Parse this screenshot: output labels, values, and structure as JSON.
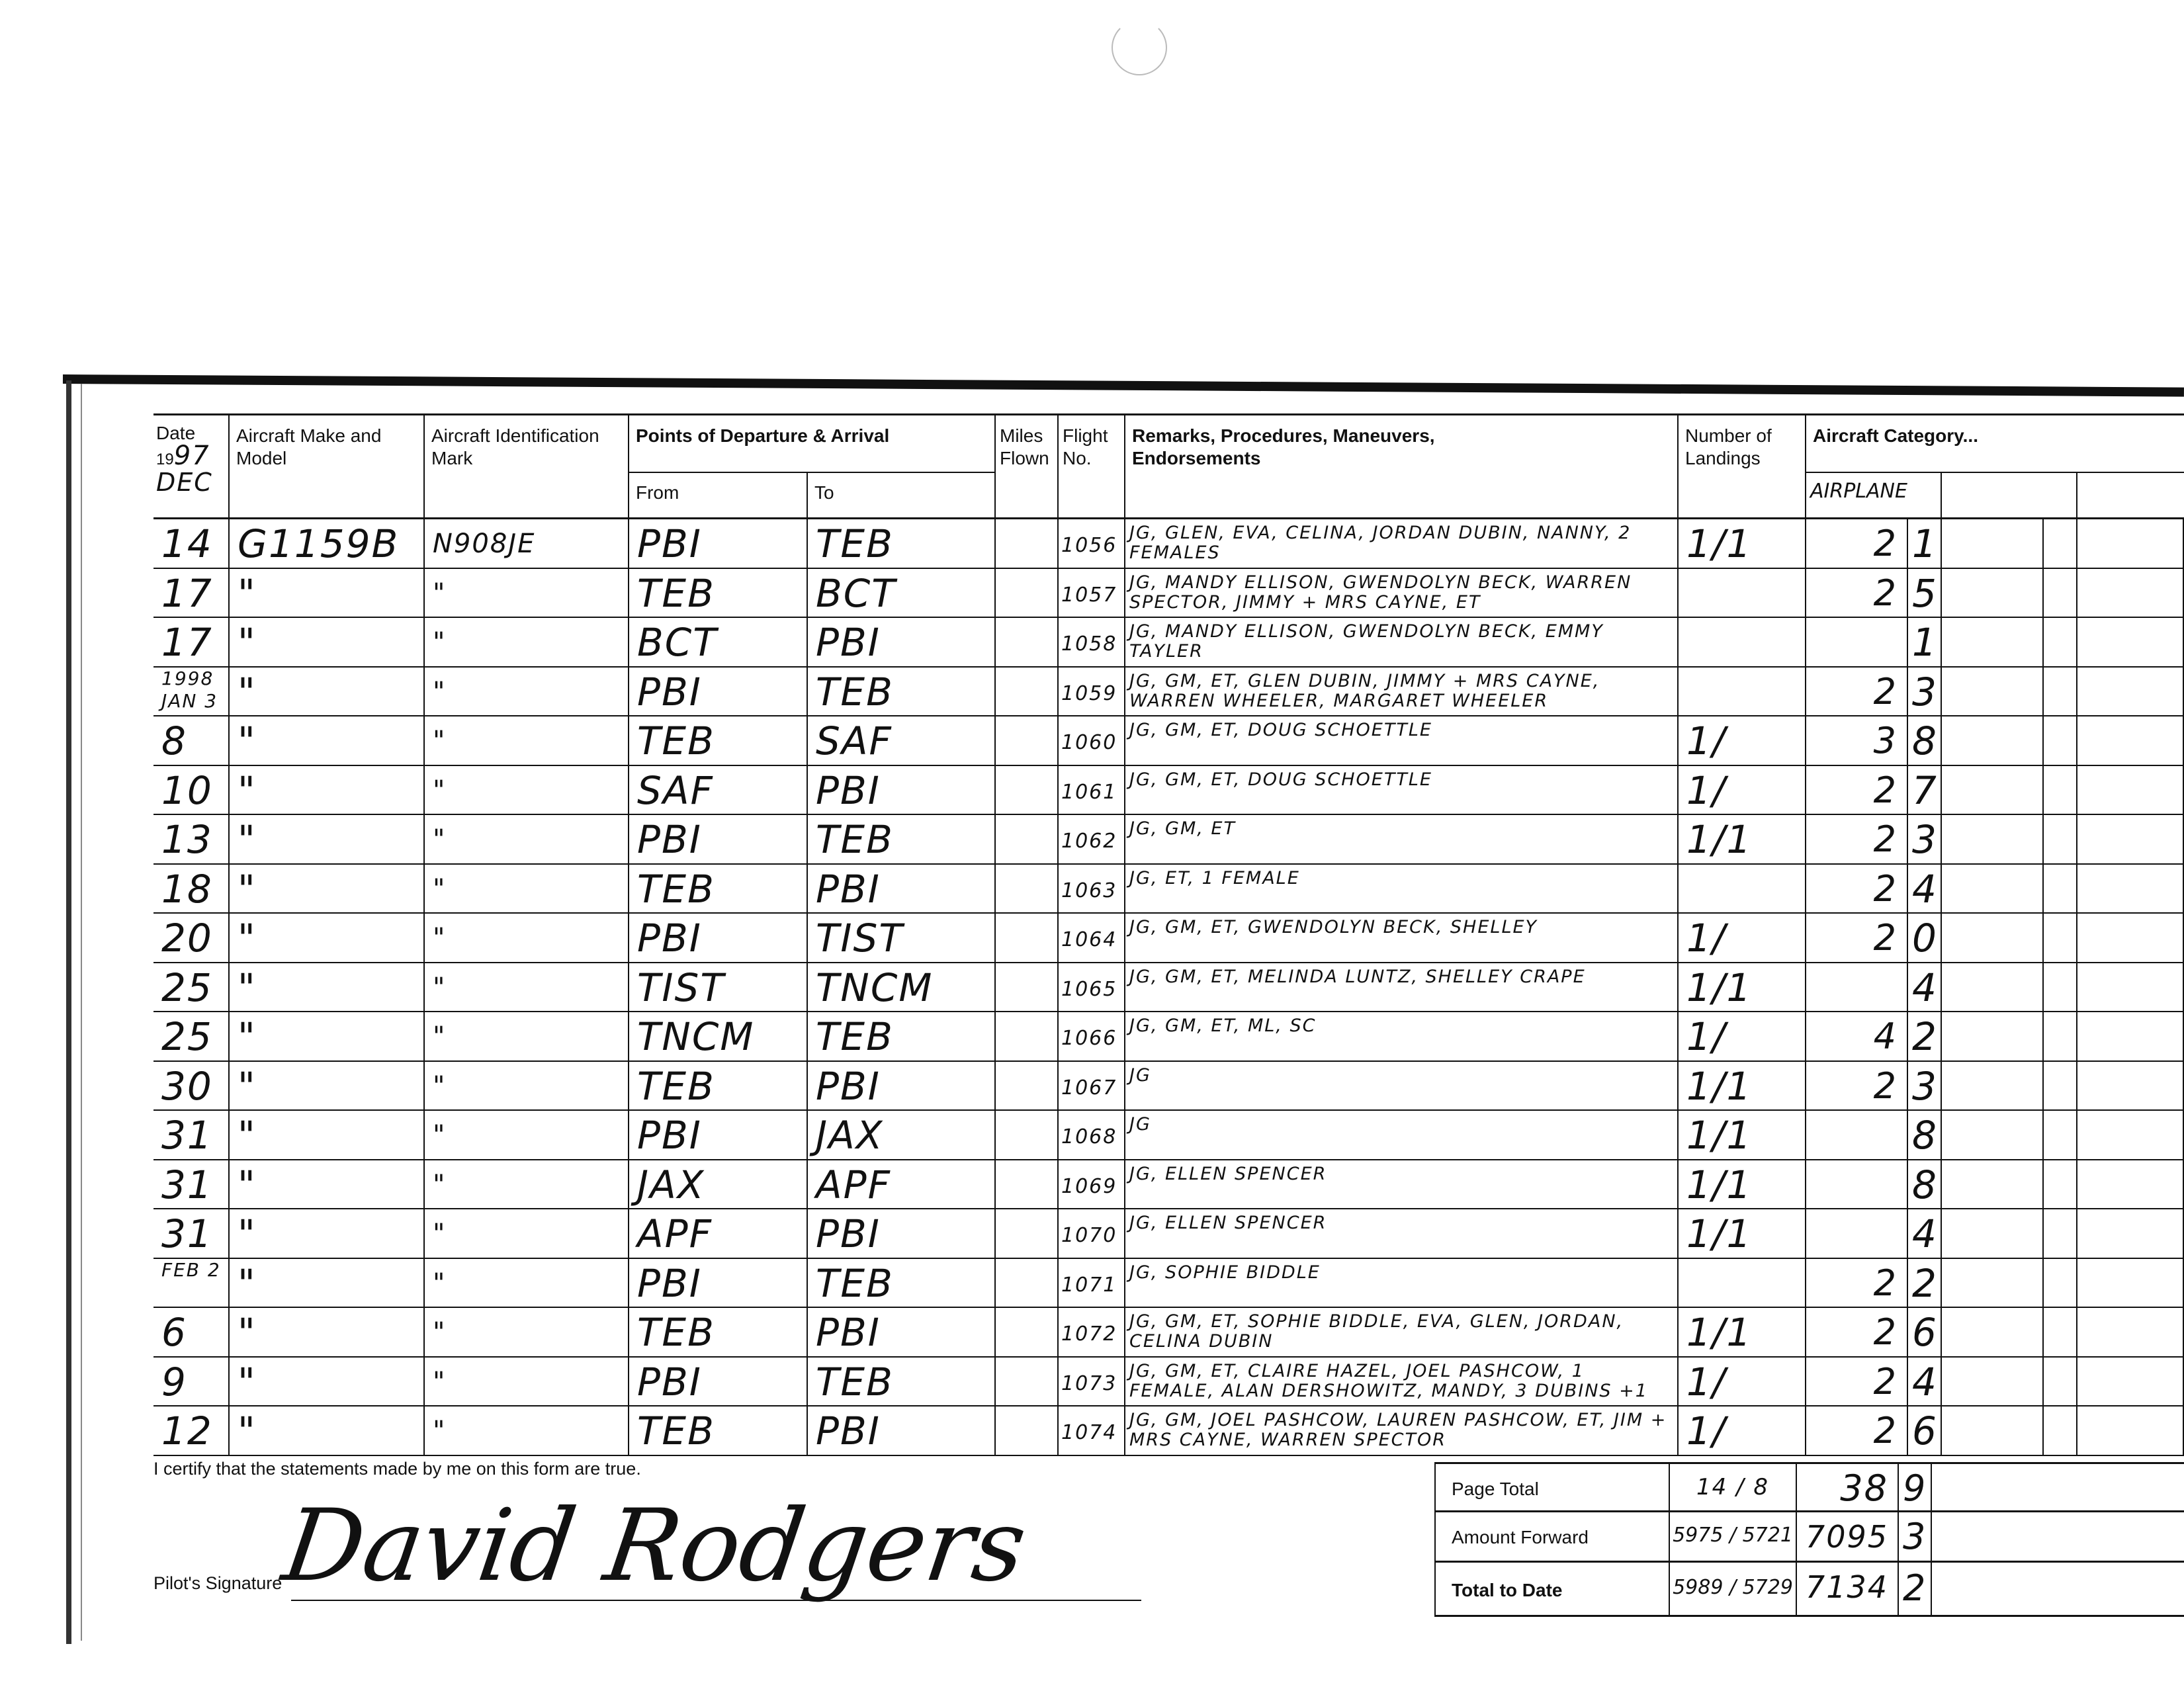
{
  "header": {
    "date_label": "Date",
    "year_prefix": "19",
    "year_suffix": "97",
    "month": "DEC",
    "make_model": "Aircraft Make and Model",
    "ident_mark": "Aircraft Identification Mark",
    "points": "Points of Departure & Arrival",
    "from": "From",
    "to": "To",
    "miles": "Miles Flown",
    "flight_no": "Flight No.",
    "remarks": "Remarks, Procedures, Maneuvers, Endorsements",
    "landings": "Number of Landings",
    "category": "Aircraft Category...",
    "category_sub": "AIRPLANE"
  },
  "rows": [
    {
      "date": "14",
      "make": "G1159B",
      "ident": "N908JE",
      "from": "PBI",
      "to": "TEB",
      "flight": "1056",
      "remarks": "JG, GLEN, EVA, CELINA, JORDAN DUBIN, NANNY, 2 FEMALES",
      "landings": "1/1",
      "hours": "2",
      "tenths": "1"
    },
    {
      "date": "17",
      "make": "\"",
      "ident": "\"",
      "from": "TEB",
      "to": "BCT",
      "flight": "1057",
      "remarks": "JG, MANDY ELLISON, GWENDOLYN BECK, WARREN SPECTOR, JIMMY + MRS CAYNE, ET",
      "landings": "",
      "hours": "2",
      "tenths": "5"
    },
    {
      "date": "17",
      "make": "\"",
      "ident": "\"",
      "from": "BCT",
      "to": "PBI",
      "flight": "1058",
      "remarks": "JG, MANDY ELLISON, GWENDOLYN BECK, EMMY TAYLER",
      "landings": "",
      "hours": "",
      "tenths": "1"
    },
    {
      "date": "1998 JAN 3",
      "make": "\"",
      "ident": "\"",
      "from": "PBI",
      "to": "TEB",
      "flight": "1059",
      "remarks": "JG, GM, ET, GLEN DUBIN, JIMMY + MRS CAYNE, WARREN WHEELER, MARGARET WHEELER",
      "landings": "",
      "hours": "2",
      "tenths": "3"
    },
    {
      "date": "8",
      "make": "\"",
      "ident": "\"",
      "from": "TEB",
      "to": "SAF",
      "flight": "1060",
      "remarks": "JG, GM, ET, DOUG SCHOETTLE",
      "landings": "1/",
      "hours": "3",
      "tenths": "8"
    },
    {
      "date": "10",
      "make": "\"",
      "ident": "\"",
      "from": "SAF",
      "to": "PBI",
      "flight": "1061",
      "remarks": "JG, GM, ET, DOUG SCHOETTLE",
      "landings": "1/",
      "hours": "2",
      "tenths": "7"
    },
    {
      "date": "13",
      "make": "\"",
      "ident": "\"",
      "from": "PBI",
      "to": "TEB",
      "flight": "1062",
      "remarks": "JG, GM, ET",
      "landings": "1/1",
      "hours": "2",
      "tenths": "3"
    },
    {
      "date": "18",
      "make": "\"",
      "ident": "\"",
      "from": "TEB",
      "to": "PBI",
      "flight": "1063",
      "remarks": "JG, ET, 1 FEMALE",
      "landings": "",
      "hours": "2",
      "tenths": "4"
    },
    {
      "date": "20",
      "make": "\"",
      "ident": "\"",
      "from": "PBI",
      "to": "TIST",
      "flight": "1064",
      "remarks": "JG, GM, ET, GWENDOLYN BECK, SHELLEY",
      "landings": "1/",
      "hours": "2",
      "tenths": "0"
    },
    {
      "date": "25",
      "make": "\"",
      "ident": "\"",
      "from": "TIST",
      "to": "TNCM",
      "flight": "1065",
      "remarks": "JG, GM, ET, MELINDA LUNTZ, SHELLEY CRAPE",
      "landings": "1/1",
      "hours": "",
      "tenths": "4"
    },
    {
      "date": "25",
      "make": "\"",
      "ident": "\"",
      "from": "TNCM",
      "to": "TEB",
      "flight": "1066",
      "remarks": "JG, GM, ET, ML, SC",
      "landings": "1/",
      "hours": "4",
      "tenths": "2"
    },
    {
      "date": "30",
      "make": "\"",
      "ident": "\"",
      "from": "TEB",
      "to": "PBI",
      "flight": "1067",
      "remarks": "JG",
      "landings": "1/1",
      "hours": "2",
      "tenths": "3"
    },
    {
      "date": "31",
      "make": "\"",
      "ident": "\"",
      "from": "PBI",
      "to": "JAX",
      "flight": "1068",
      "remarks": "JG",
      "landings": "1/1",
      "hours": "",
      "tenths": "8"
    },
    {
      "date": "31",
      "make": "\"",
      "ident": "\"",
      "from": "JAX",
      "to": "APF",
      "flight": "1069",
      "remarks": "JG, ELLEN SPENCER",
      "landings": "1/1",
      "hours": "",
      "tenths": "8"
    },
    {
      "date": "31",
      "make": "\"",
      "ident": "\"",
      "from": "APF",
      "to": "PBI",
      "flight": "1070",
      "remarks": "JG, ELLEN SPENCER",
      "landings": "1/1",
      "hours": "",
      "tenths": "4"
    },
    {
      "date": "FEB 2",
      "make": "\"",
      "ident": "\"",
      "from": "PBI",
      "to": "TEB",
      "flight": "1071",
      "remarks": "JG, SOPHIE BIDDLE",
      "landings": "",
      "hours": "2",
      "tenths": "2"
    },
    {
      "date": "6",
      "make": "\"",
      "ident": "\"",
      "from": "TEB",
      "to": "PBI",
      "flight": "1072",
      "remarks": "JG, GM, ET, SOPHIE BIDDLE, EVA, GLEN, JORDAN, CELINA DUBIN",
      "landings": "1/1",
      "hours": "2",
      "tenths": "6"
    },
    {
      "date": "9",
      "make": "\"",
      "ident": "\"",
      "from": "PBI",
      "to": "TEB",
      "flight": "1073",
      "remarks": "JG, GM, ET, CLAIRE HAZEL, JOEL PASHCOW, 1 FEMALE, ALAN DERSHOWITZ, MANDY, 3 DUBINS +1",
      "landings": "1/",
      "hours": "2",
      "tenths": "4"
    },
    {
      "date": "12",
      "make": "\"",
      "ident": "\"",
      "from": "TEB",
      "to": "PBI",
      "flight": "1074",
      "remarks": "JG, GM, JOEL PASHCOW, LAUREN PASHCOW, ET, JIM + MRS CAYNE, WARREN SPECTOR",
      "landings": "1/",
      "hours": "2",
      "tenths": "6"
    }
  ],
  "footer": {
    "certify": "I certify that the statements made by me on this form are true.",
    "signature_label": "Pilot's Signature",
    "signature": "David Rodgers",
    "page_total_label": "Page Total",
    "page_total_landings": "14 / 8",
    "page_total_hours": "38",
    "page_total_tenths": "9",
    "amount_forward_label": "Amount Forward",
    "amount_forward_landings": "5975 / 5721",
    "amount_forward_hours": "7095",
    "amount_forward_tenths": "3",
    "total_label": "Total to Date",
    "total_landings": "5989 / 5729",
    "total_hours": "7134",
    "total_tenths": "2"
  }
}
